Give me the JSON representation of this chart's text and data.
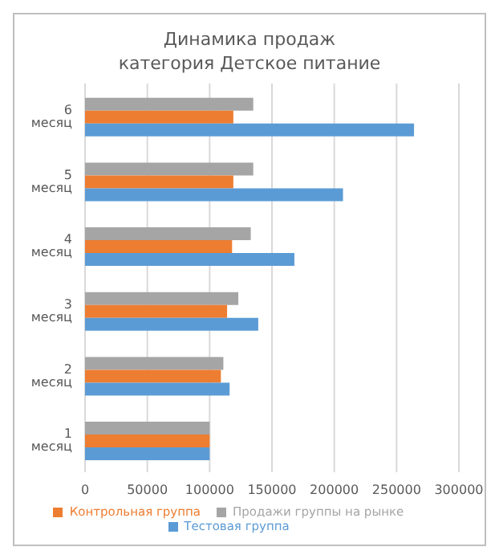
{
  "chart_data": {
    "type": "bar",
    "orientation": "horizontal",
    "title": "Динамика продаж\nкатегория Детское питание",
    "categories": [
      "6 месяц",
      "5 месяц",
      "4 месяц",
      "3 месяц",
      "2 месяц",
      "1 месяц"
    ],
    "series": [
      {
        "name": "Продажи группы на рынке",
        "color": "#a5a5a5",
        "values": [
          135000,
          135000,
          133000,
          123000,
          111000,
          100000
        ]
      },
      {
        "name": "Контрольная группа",
        "color": "#ed7d31",
        "values": [
          119000,
          119000,
          118000,
          114000,
          109000,
          100000
        ]
      },
      {
        "name": "Тестовая группа",
        "color": "#5b9bd5",
        "values": [
          264000,
          207000,
          168000,
          139000,
          116000,
          100000
        ]
      }
    ],
    "xlim": [
      0,
      300000
    ],
    "xticks": [
      0,
      50000,
      100000,
      150000,
      200000,
      250000,
      300000
    ],
    "grid": "x",
    "legend": "bottom"
  }
}
